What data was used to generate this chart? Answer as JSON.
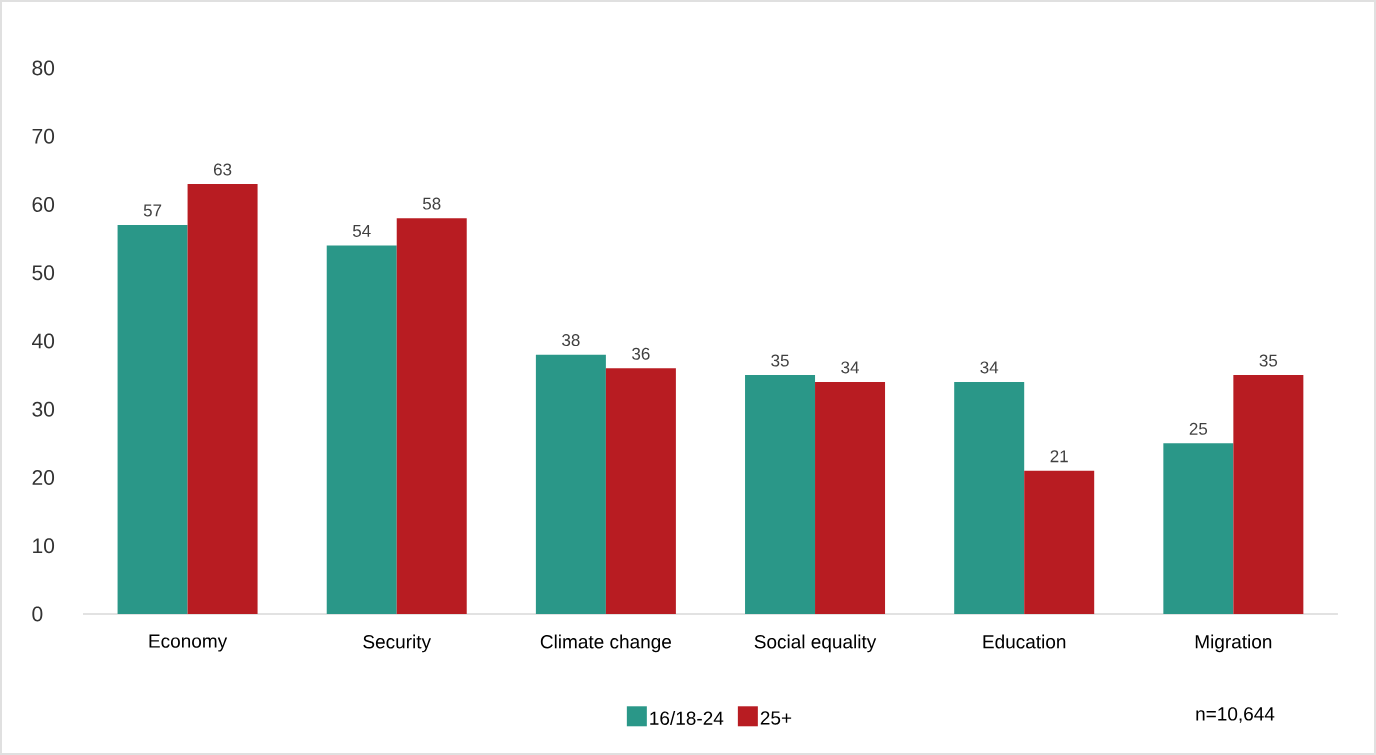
{
  "chart_data": {
    "type": "bar",
    "categories": [
      "Economy",
      "Security",
      "Climate change",
      "Social equality",
      "Education",
      "Migration"
    ],
    "series": [
      {
        "name": "16/18-24",
        "color": "#2a9788",
        "values": [
          57,
          54,
          38,
          35,
          34,
          25
        ]
      },
      {
        "name": "25+",
        "color": "#b81c22",
        "values": [
          63,
          58,
          36,
          34,
          21,
          35
        ]
      }
    ],
    "ylim": [
      0,
      80
    ],
    "yticks": [
      0,
      10,
      20,
      30,
      40,
      50,
      60,
      70,
      80
    ],
    "data_labels": true,
    "legend": "bottom",
    "annotations": [
      "n=10,644"
    ]
  }
}
